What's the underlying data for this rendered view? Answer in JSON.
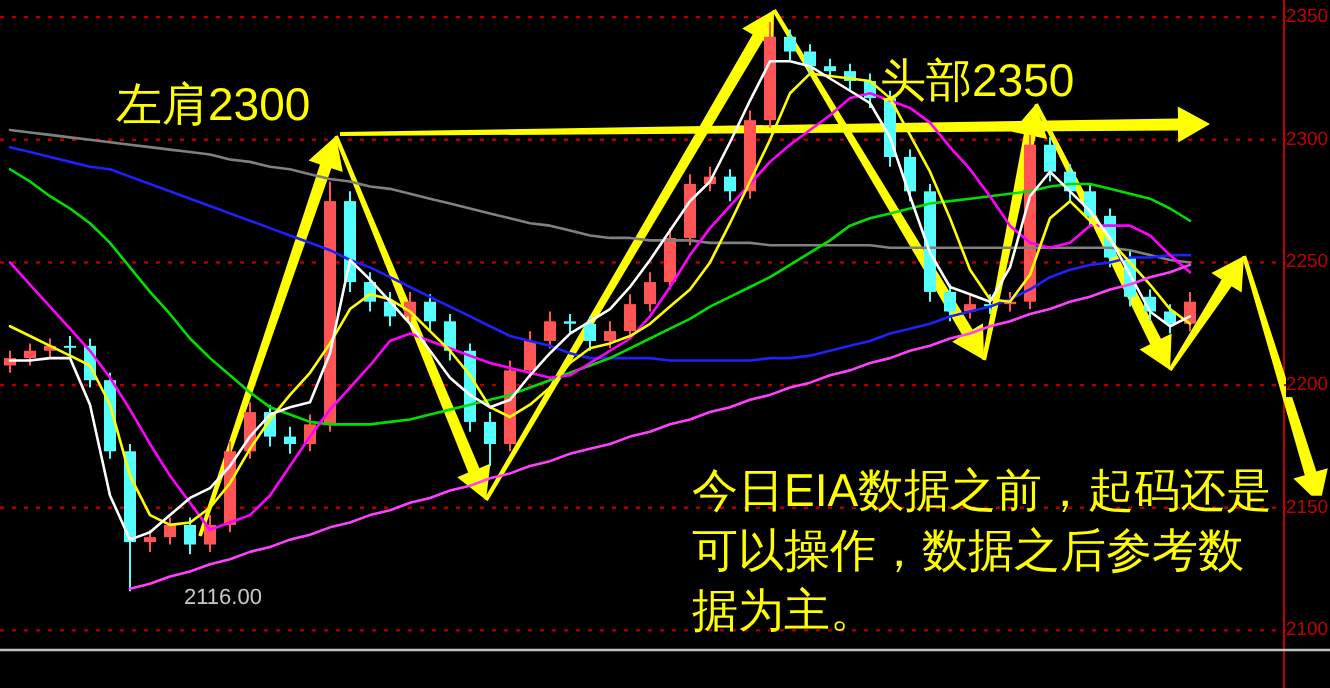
{
  "chart_data": {
    "type": "candlestick",
    "categories": [
      null,
      null,
      null,
      null,
      null,
      null,
      null,
      null,
      null,
      null,
      null,
      null,
      null,
      null,
      null,
      null,
      null,
      null,
      null,
      null,
      null,
      null,
      null,
      null,
      null,
      null,
      null,
      null,
      null,
      null,
      null,
      null,
      null,
      null,
      null,
      null,
      null,
      null,
      null,
      null,
      null,
      null,
      null,
      null,
      null,
      null,
      null,
      null,
      null,
      null,
      null,
      null,
      null,
      null,
      null,
      null,
      null,
      null,
      null,
      null
    ],
    "ohlc": [
      [
        2208,
        2214,
        2205,
        2211
      ],
      [
        2211,
        2217,
        2208,
        2214
      ],
      [
        2214,
        2219,
        2211,
        2216
      ],
      [
        2216,
        2220,
        2212,
        2216
      ],
      [
        2216,
        2219,
        2199,
        2202
      ],
      [
        2202,
        2205,
        2170,
        2173
      ],
      [
        2173,
        2176,
        2116,
        2136
      ],
      [
        2136,
        2141,
        2132,
        2138
      ],
      [
        2138,
        2146,
        2135,
        2143
      ],
      [
        2143,
        2146,
        2131,
        2135
      ],
      [
        2135,
        2147,
        2132,
        2143
      ],
      [
        2143,
        2177,
        2140,
        2173
      ],
      [
        2173,
        2193,
        2170,
        2189
      ],
      [
        2189,
        2192,
        2175,
        2179
      ],
      [
        2179,
        2183,
        2172,
        2176
      ],
      [
        2176,
        2188,
        2173,
        2184
      ],
      [
        2184,
        2283,
        2181,
        2275
      ],
      [
        2275,
        2279,
        2238,
        2242
      ],
      [
        2242,
        2246,
        2230,
        2234
      ],
      [
        2234,
        2238,
        2224,
        2228
      ],
      [
        2228,
        2238,
        2225,
        2234
      ],
      [
        2234,
        2237,
        2222,
        2226
      ],
      [
        2226,
        2229,
        2210,
        2214
      ],
      [
        2214,
        2217,
        2181,
        2185
      ],
      [
        2185,
        2189,
        2167,
        2176
      ],
      [
        2176,
        2210,
        2173,
        2206
      ],
      [
        2206,
        2222,
        2203,
        2218
      ],
      [
        2218,
        2230,
        2215,
        2226
      ],
      [
        2226,
        2229,
        2221,
        2225
      ],
      [
        2225,
        2228,
        2214,
        2218
      ],
      [
        2218,
        2226,
        2215,
        2222
      ],
      [
        2222,
        2237,
        2219,
        2233
      ],
      [
        2233,
        2246,
        2230,
        2242
      ],
      [
        2242,
        2264,
        2239,
        2260
      ],
      [
        2260,
        2286,
        2257,
        2282
      ],
      [
        2282,
        2289,
        2279,
        2285
      ],
      [
        2285,
        2288,
        2275,
        2279
      ],
      [
        2279,
        2312,
        2276,
        2308
      ],
      [
        2308,
        2348,
        2305,
        2342
      ],
      [
        2342,
        2345,
        2332,
        2336
      ],
      [
        2336,
        2339,
        2326,
        2330
      ],
      [
        2330,
        2333,
        2325,
        2328
      ],
      [
        2328,
        2331,
        2320,
        2324
      ],
      [
        2324,
        2327,
        2313,
        2317
      ],
      [
        2317,
        2320,
        2289,
        2293
      ],
      [
        2293,
        2296,
        2275,
        2279
      ],
      [
        2279,
        2282,
        2234,
        2238
      ],
      [
        2238,
        2241,
        2226,
        2230
      ],
      [
        2230,
        2237,
        2227,
        2233
      ],
      [
        2233,
        2237,
        2229,
        2233
      ],
      [
        2233,
        2238,
        2230,
        2234
      ],
      [
        2234,
        2302,
        2231,
        2298
      ],
      [
        2298,
        2301,
        2283,
        2287
      ],
      [
        2287,
        2290,
        2275,
        2279
      ],
      [
        2279,
        2282,
        2265,
        2269
      ],
      [
        2269,
        2272,
        2248,
        2252
      ],
      [
        2252,
        2255,
        2232,
        2236
      ],
      [
        2236,
        2239,
        2226,
        2230
      ],
      [
        2230,
        2233,
        2221,
        2225
      ],
      [
        2225,
        2238,
        2222,
        2234
      ]
    ],
    "colors": [
      "#ff5555",
      "#ff5555",
      "#ff5555",
      "#55ffff",
      "#55ffff",
      "#55ffff",
      "#55ffff",
      "#ff5555",
      "#ff5555",
      "#55ffff",
      "#ff5555",
      "#ff5555",
      "#ff5555",
      "#55ffff",
      "#55ffff",
      "#ff5555",
      "#ff5555",
      "#55ffff",
      "#55ffff",
      "#55ffff",
      "#ff5555",
      "#55ffff",
      "#55ffff",
      "#55ffff",
      "#55ffff",
      "#ff5555",
      "#ff5555",
      "#ff5555",
      "#55ffff",
      "#55ffff",
      "#ff5555",
      "#ff5555",
      "#ff5555",
      "#ff5555",
      "#ff5555",
      "#ff5555",
      "#55ffff",
      "#ff5555",
      "#ff5555",
      "#55ffff",
      "#55ffff",
      "#55ffff",
      "#55ffff",
      "#55ffff",
      "#55ffff",
      "#55ffff",
      "#55ffff",
      "#55ffff",
      "#ff5555",
      "#55ffff",
      "#ff5555",
      "#ff5555",
      "#55ffff",
      "#55ffff",
      "#55ffff",
      "#55ffff",
      "#55ffff",
      "#55ffff",
      "#55ffff",
      "#ff5555"
    ],
    "series": [
      {
        "type": "line",
        "color": "#808080",
        "values": [
          2304,
          2303,
          2302,
          2301,
          2300,
          2299,
          2298,
          2297,
          2296,
          2295,
          2294,
          2292,
          2291,
          2289,
          2288,
          2286,
          2284,
          2283,
          2281,
          2280,
          2278,
          2276,
          2274,
          2272,
          2270,
          2268,
          2266,
          2265,
          2263,
          2261,
          2260,
          2260,
          2259,
          2259,
          2259,
          2258,
          2258,
          2258,
          2257,
          2257,
          2257,
          2257,
          2257,
          2257,
          2256,
          2256,
          2256,
          2256,
          2256,
          2256,
          2256,
          2256,
          2256,
          2256,
          2256,
          2256,
          2255,
          2253,
          2251,
          2250
        ]
      },
      {
        "type": "line",
        "color": "#2020ff",
        "values": [
          2297,
          2295,
          2293,
          2291,
          2289,
          2288,
          2285,
          2282,
          2279,
          2276,
          2273,
          2270,
          2267,
          2264,
          2261,
          2258,
          2255,
          2251,
          2248,
          2244,
          2240,
          2236,
          2232,
          2228,
          2224,
          2220,
          2218,
          2216,
          2213,
          2211,
          2211,
          2211,
          2211,
          2210,
          2210,
          2210,
          2210,
          2210,
          2211,
          2211,
          2212,
          2214,
          2216,
          2218,
          2221,
          2223,
          2225,
          2228,
          2230,
          2232,
          2235,
          2239,
          2244,
          2247,
          2249,
          2250,
          2252,
          2252,
          2253,
          2253
        ]
      },
      {
        "type": "line",
        "color": "#00e000",
        "values": [
          2288,
          2283,
          2277,
          2272,
          2266,
          2258,
          2248,
          2238,
          2229,
          2219,
          2211,
          2204,
          2197,
          2191,
          2188,
          2185,
          2184,
          2184,
          2184,
          2185,
          2186,
          2188,
          2190,
          2192,
          2194,
          2196,
          2199,
          2202,
          2205,
          2208,
          2211,
          2215,
          2219,
          2223,
          2227,
          2232,
          2236,
          2240,
          2244,
          2249,
          2254,
          2259,
          2265,
          2268,
          2270,
          2272,
          2274,
          2275,
          2276,
          2277,
          2278,
          2279,
          2281,
          2282,
          2282,
          2280,
          2278,
          2276,
          2272,
          2267
        ]
      },
      {
        "type": "line",
        "color": "#ff00ff",
        "values": [
          2250,
          2241,
          2232,
          2223,
          2214,
          2203,
          2190,
          2176,
          2163,
          2152,
          2141,
          2144,
          2147,
          2155,
          2167,
          2179,
          2190,
          2199,
          2208,
          2218,
          2221,
          2218,
          2215,
          2212,
          2209,
          2207,
          2205,
          2203,
          2204,
          2209,
          2214,
          2219,
          2228,
          2240,
          2253,
          2264,
          2273,
          2282,
          2291,
          2298,
          2304,
          2310,
          2317,
          2319,
          2316,
          2313,
          2307,
          2297,
          2288,
          2277,
          2265,
          2258,
          2256,
          2258,
          2265,
          2265,
          2265,
          2261,
          2253,
          2246
        ]
      },
      {
        "type": "line",
        "color": "#ffff00",
        "values": [
          2224,
          2220,
          2216,
          2212,
          2208,
          2192,
          2163,
          2147,
          2143,
          2144,
          2150,
          2160,
          2174,
          2186,
          2196,
          2205,
          2217,
          2231,
          2237,
          2235,
          2230,
          2222,
          2214,
          2204,
          2191,
          2187,
          2192,
          2199,
          2209,
          2215,
          2217,
          2220,
          2225,
          2232,
          2239,
          2250,
          2266,
          2283,
          2300,
          2319,
          2327,
          2326,
          2325,
          2324,
          2317,
          2302,
          2287,
          2268,
          2247,
          2235,
          2234,
          2245,
          2268,
          2275,
          2267,
          2259,
          2250,
          2241,
          2231,
          2225
        ]
      },
      {
        "type": "line",
        "color": "#ffffff",
        "values": [
          2210,
          2210,
          2211,
          2211,
          2192,
          2155,
          2137,
          2140,
          2147,
          2154,
          2158,
          2167,
          2179,
          2188,
          2191,
          2193,
          2213,
          2251,
          2243,
          2234,
          2225,
          2214,
          2203,
          2196,
          2191,
          2194,
          2204,
          2213,
          2221,
          2226,
          2231,
          2240,
          2251,
          2263,
          2275,
          2283,
          2299,
          2316,
          2332,
          2332,
          2330,
          2325,
          2320,
          2315,
          2301,
          2277,
          2254,
          2240,
          2237,
          2234,
          2248,
          2277,
          2287,
          2279,
          2271,
          2260,
          2245,
          2230,
          2224,
          2228
        ]
      },
      {
        "type": "line",
        "color": "#ff40ff",
        "values": [
          null,
          null,
          null,
          null,
          null,
          null,
          2117,
          2119,
          2122,
          2124,
          2127,
          2129,
          2132,
          2134,
          2137,
          2139,
          2142,
          2144,
          2147,
          2149,
          2152,
          2154,
          2157,
          2159,
          2162,
          2164,
          2167,
          2169,
          2172,
          2174,
          2176,
          2179,
          2181,
          2184,
          2186,
          2189,
          2191,
          2194,
          2196,
          2199,
          2201,
          2204,
          2206,
          2209,
          2211,
          2214,
          2216,
          2219,
          2221,
          2224,
          2226,
          2229,
          2231,
          2234,
          2236,
          2239,
          2241,
          2244,
          2246,
          2249
        ]
      }
    ],
    "ylim": [
      2092,
      2357
    ],
    "yticks": [
      {
        "value": 2350,
        "label": "2350"
      },
      {
        "value": 2300,
        "label": "2300"
      },
      {
        "value": 2250,
        "label": "2250"
      },
      {
        "value": 2200,
        "label": "2200"
      },
      {
        "value": 2150,
        "label": "2150"
      },
      {
        "value": 2100,
        "label": "2100"
      }
    ],
    "grid": "y",
    "tick_labels": "y",
    "annotations": [
      "左肩2300",
      "头部2350",
      "2116.00",
      "今日EIA数据之前，起码还是可以操作，数据之后参考数据为主。"
    ]
  }
}
